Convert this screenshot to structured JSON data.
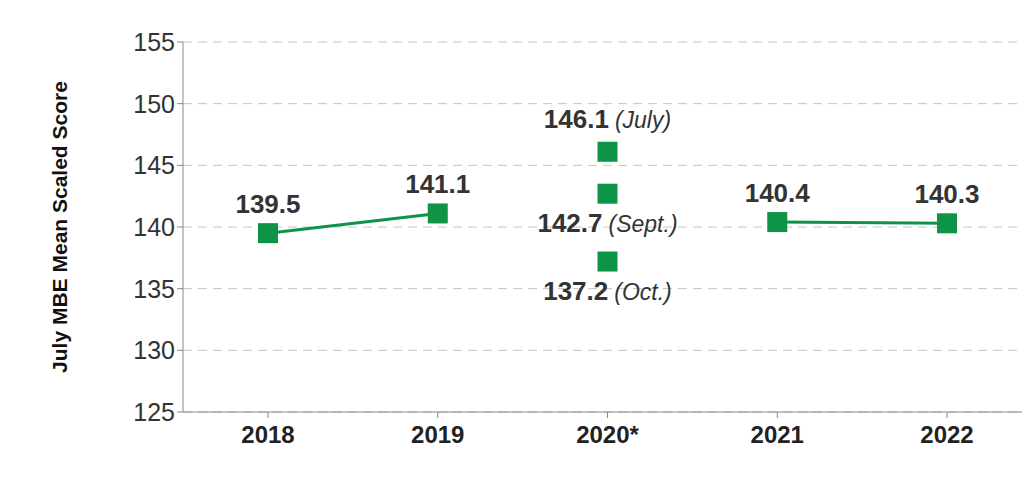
{
  "chart_data": {
    "type": "line",
    "y_label": "July MBE Mean Scaled Score",
    "categories": [
      "2018",
      "2019",
      "2020*",
      "2021",
      "2022"
    ],
    "values": [
      139.5,
      141.1,
      null,
      140.4,
      140.3
    ],
    "color": "#0f9347",
    "marker": "square",
    "data_labels": true,
    "grid": true,
    "ylim": [
      125,
      155
    ],
    "yticks": [
      125,
      130,
      135,
      140,
      145,
      150,
      155
    ],
    "annotations": [
      {
        "category": "2020*",
        "value": 146.1,
        "label": "(July)"
      },
      {
        "category": "2020*",
        "value": 142.7,
        "label": "(Sept.)"
      },
      {
        "category": "2020*",
        "value": 137.2,
        "label": "(Oct.)"
      }
    ]
  }
}
